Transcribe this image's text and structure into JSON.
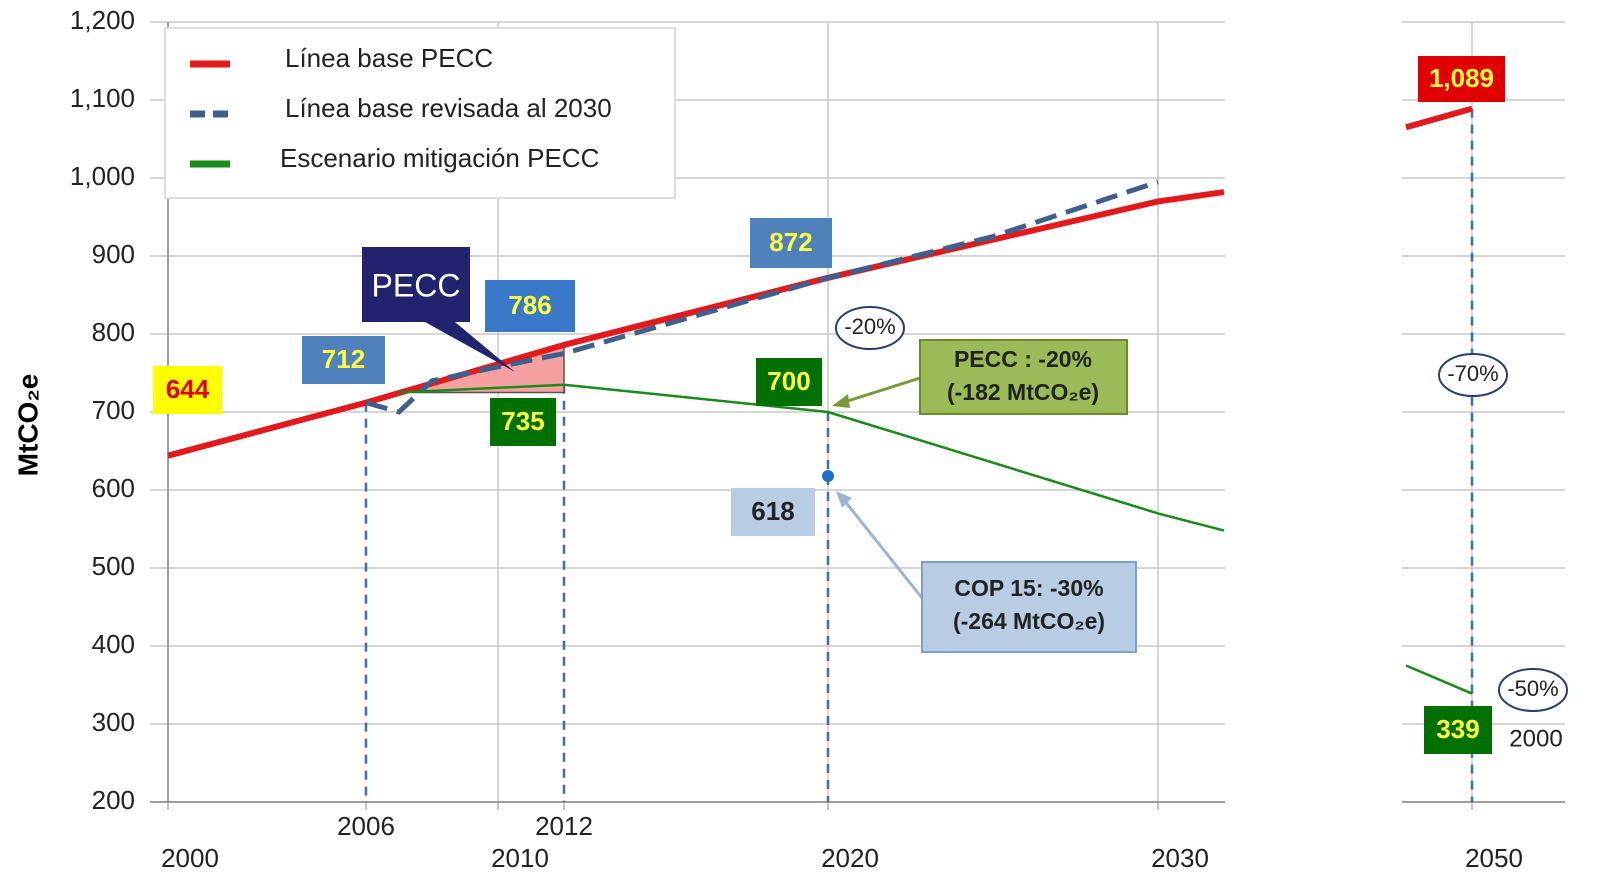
{
  "chart_data": {
    "type": "line",
    "y_label": "MtCO₂e",
    "ylim": [
      200,
      1200
    ],
    "yticks": [
      200,
      300,
      400,
      500,
      600,
      700,
      800,
      900,
      {
        "value": 1000,
        "label": "1,000"
      },
      {
        "value": 1100,
        "label": "1,100"
      },
      {
        "value": 1200,
        "label": "1,200"
      }
    ],
    "xticks": [
      2000,
      2006,
      2010,
      2012,
      2020,
      2030,
      2050
    ],
    "grid": true,
    "legend": "upper left",
    "series": [
      {
        "name": "Línea base PECC",
        "color": "#e31a1c",
        "style": "solid",
        "x": [
          2000,
          2006,
          2012,
          2020,
          2030,
          2032,
          null,
          2048,
          2050
        ],
        "values": [
          644,
          712,
          786,
          872,
          970,
          982,
          null,
          1065,
          1089
        ]
      },
      {
        "name": "Línea base revisada al 2030",
        "color": "#3f5f8f",
        "style": "dashed",
        "x": [
          2006,
          2007,
          2008,
          2010,
          2012,
          2020,
          2025,
          2030
        ],
        "values": [
          712,
          700,
          740,
          758,
          775,
          872,
          925,
          995
        ]
      },
      {
        "name": "Escenario mitigación PECC",
        "color": "#1a8a1a",
        "style": "solid",
        "x": [
          2007,
          2012,
          2020,
          2030,
          2032,
          null,
          2048,
          2050
        ],
        "values": [
          725,
          735,
          700,
          570,
          548,
          null,
          375,
          339
        ]
      }
    ],
    "point_labels": [
      {
        "x": 2000,
        "value": 644,
        "label": "644"
      },
      {
        "x": 2006,
        "value": 712,
        "label": "712"
      },
      {
        "x": 2012,
        "value": 786,
        "label": "786"
      },
      {
        "x": 2020,
        "value": 872,
        "label": "872"
      },
      {
        "x": 2020,
        "value": 700,
        "label": "700"
      },
      {
        "x": 2012,
        "value": 735,
        "label": "735"
      },
      {
        "x": 2020,
        "value": 618,
        "label": "618"
      },
      {
        "x": 2050,
        "value": 1089,
        "label": "1,089"
      },
      {
        "x": 2050,
        "value": 339,
        "label": "339"
      }
    ],
    "annotations": [
      "PECC",
      "-20%",
      "-70%",
      "-50%",
      "2000",
      "PECC : -20%",
      "(-182 MtCO₂e)",
      "COP 15: -30%",
      "(-264 MtCO₂e)"
    ]
  }
}
